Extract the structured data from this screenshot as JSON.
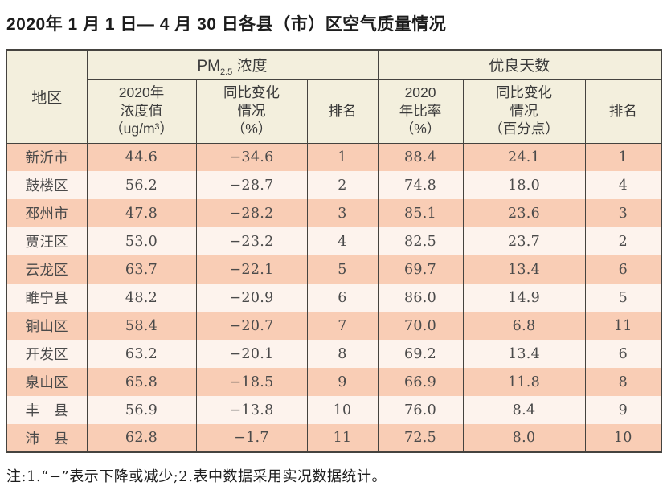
{
  "title": "2020年 1 月 1 日— 4 月 30 日各县（市）区空气质量情况",
  "table": {
    "corner_header": "地区",
    "group_pm": {
      "prefix": "PM",
      "sub": "2.5",
      "suffix": " 浓度"
    },
    "group_good": "优良天数",
    "subheaders": {
      "pm_value": {
        "l1": "2020年",
        "l2": "浓度值",
        "l3": "（ug/m³）"
      },
      "pm_change": {
        "l1": "同比变化",
        "l2": "情况",
        "l3": "（%）"
      },
      "pm_rank": {
        "l1": "排名"
      },
      "good_ratio": {
        "l1": "2020",
        "l2": "年比率",
        "l3": "（%）"
      },
      "good_change": {
        "l1": "同比变化",
        "l2": "情况",
        "l3": "（百分点）"
      },
      "good_rank": {
        "l1": "排名"
      }
    },
    "rows": [
      [
        "新沂市",
        "44.6",
        "−34.6",
        "1",
        "88.4",
        "24.1",
        "1"
      ],
      [
        "鼓楼区",
        "56.2",
        "−28.7",
        "2",
        "74.8",
        "18.0",
        "4"
      ],
      [
        "邳州市",
        "47.8",
        "−28.2",
        "3",
        "85.1",
        "23.6",
        "3"
      ],
      [
        "贾汪区",
        "53.0",
        "−23.2",
        "4",
        "82.5",
        "23.7",
        "2"
      ],
      [
        "云龙区",
        "63.7",
        "−22.1",
        "5",
        "69.7",
        "13.4",
        "6"
      ],
      [
        "睢宁县",
        "48.2",
        "−20.9",
        "6",
        "86.0",
        "14.9",
        "5"
      ],
      [
        "铜山区",
        "58.4",
        "−20.7",
        "7",
        "70.0",
        "6.8",
        "11"
      ],
      [
        "开发区",
        "63.2",
        "−20.1",
        "8",
        "69.2",
        "13.4",
        "6"
      ],
      [
        "泉山区",
        "65.8",
        "−18.5",
        "9",
        "66.9",
        "11.8",
        "8"
      ],
      [
        "丰　县",
        "56.9",
        "−13.8",
        "10",
        "76.0",
        "8.4",
        "9"
      ],
      [
        "沛　县",
        "62.8",
        "−1.7",
        "11",
        "72.5",
        "8.0",
        "10"
      ]
    ]
  },
  "note": "注:1.“−”表示下降或减少;2.表中数据采用实况数据统计。",
  "colors": {
    "row_odd": "#f9cdb5",
    "row_even": "#fdf3ed",
    "header_bg": "#f3efdd",
    "border": "#45433f"
  }
}
